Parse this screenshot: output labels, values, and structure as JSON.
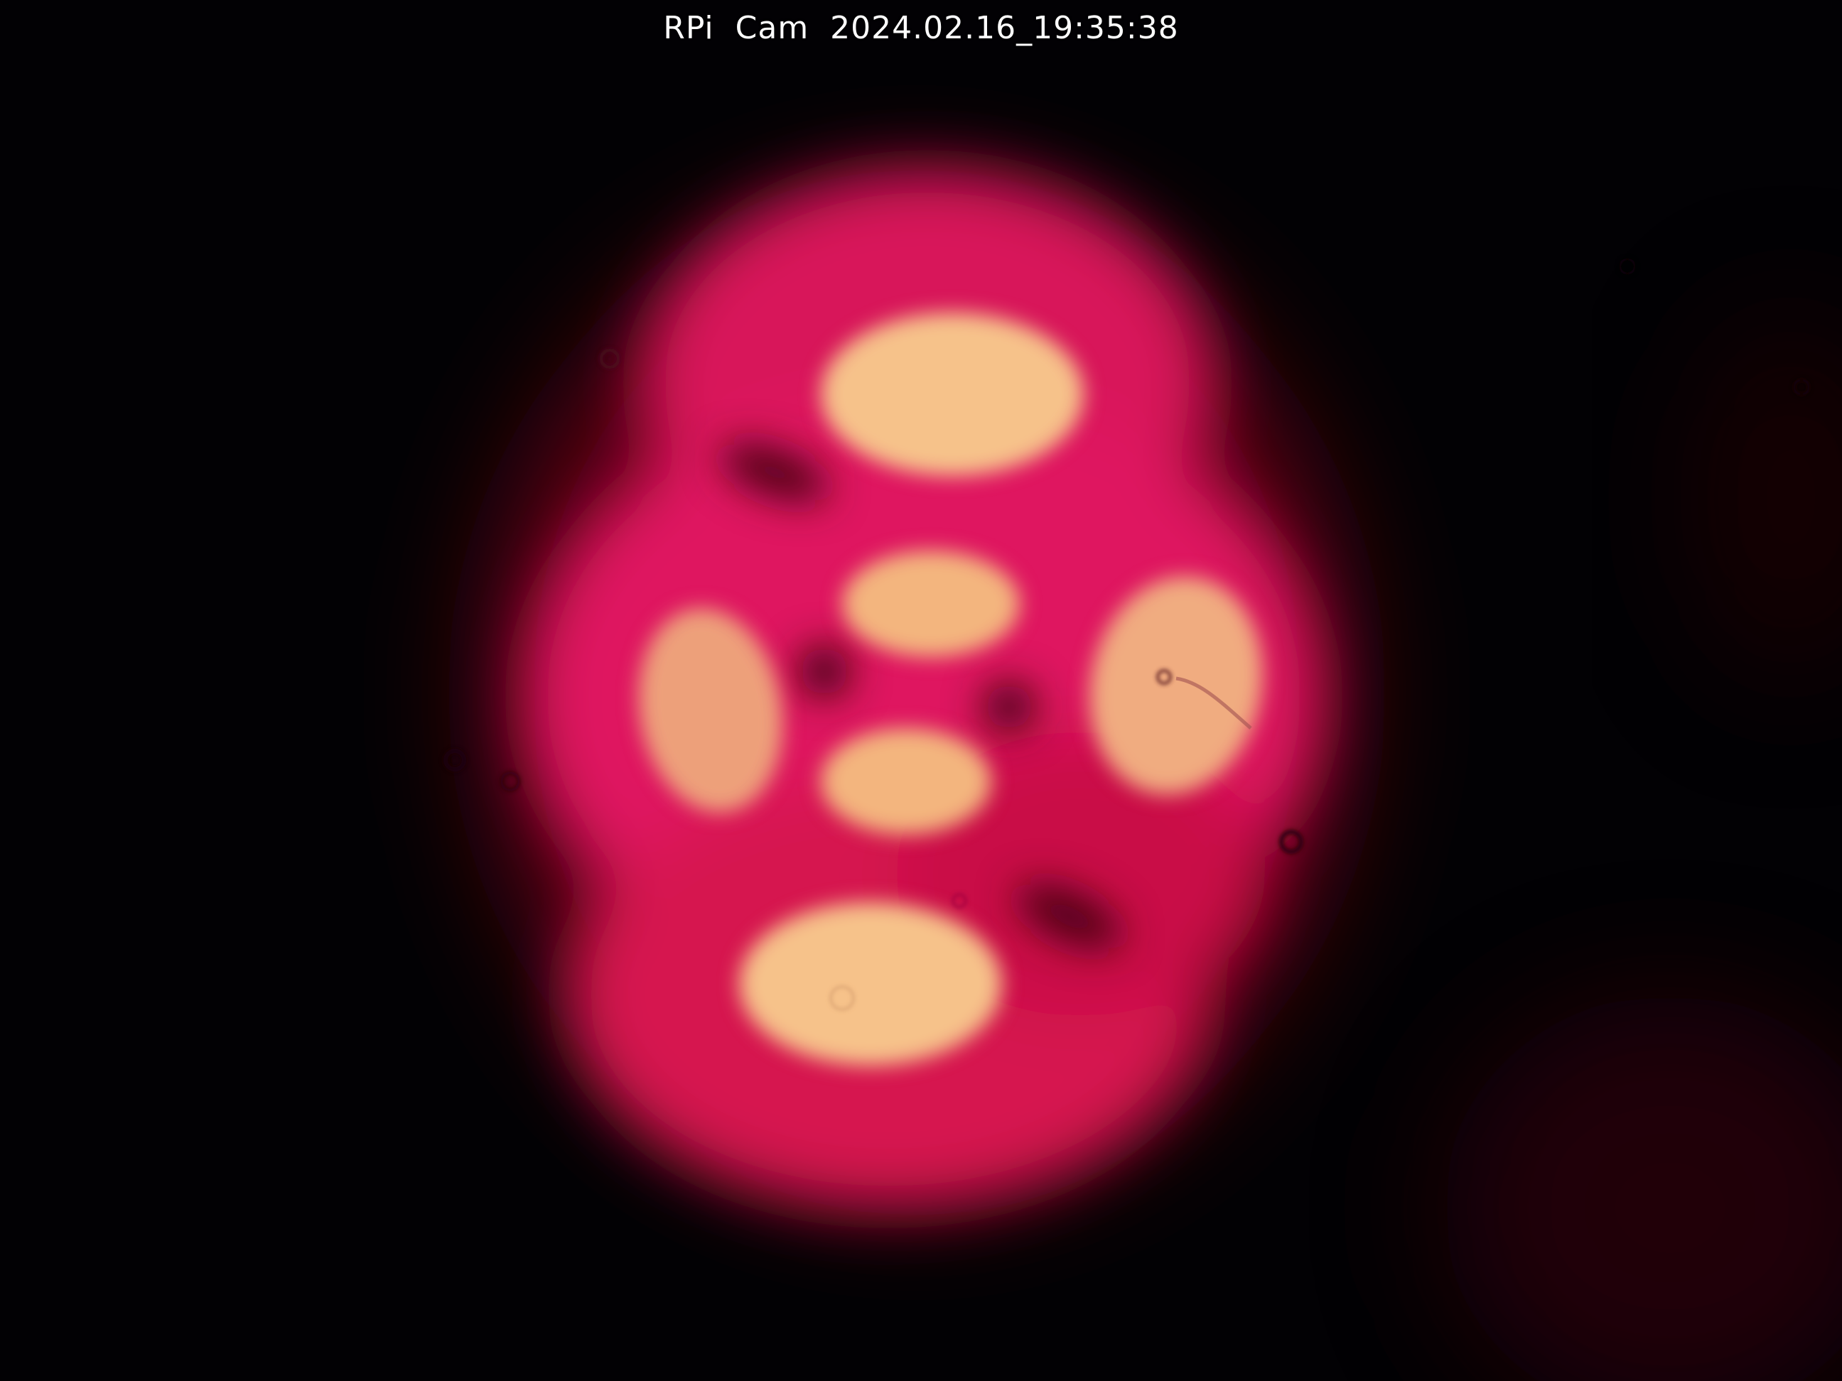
{
  "overlay": {
    "camera_timestamp": "RPi  Cam  2024.02.16_19:35:38"
  },
  "image": {
    "subject": "laser-beam-mode-pattern",
    "colors": {
      "background": "#020104",
      "outer_glow": "#c0103a",
      "beam_body": "#e5155f",
      "hot_spot": "#f6c28a"
    }
  }
}
